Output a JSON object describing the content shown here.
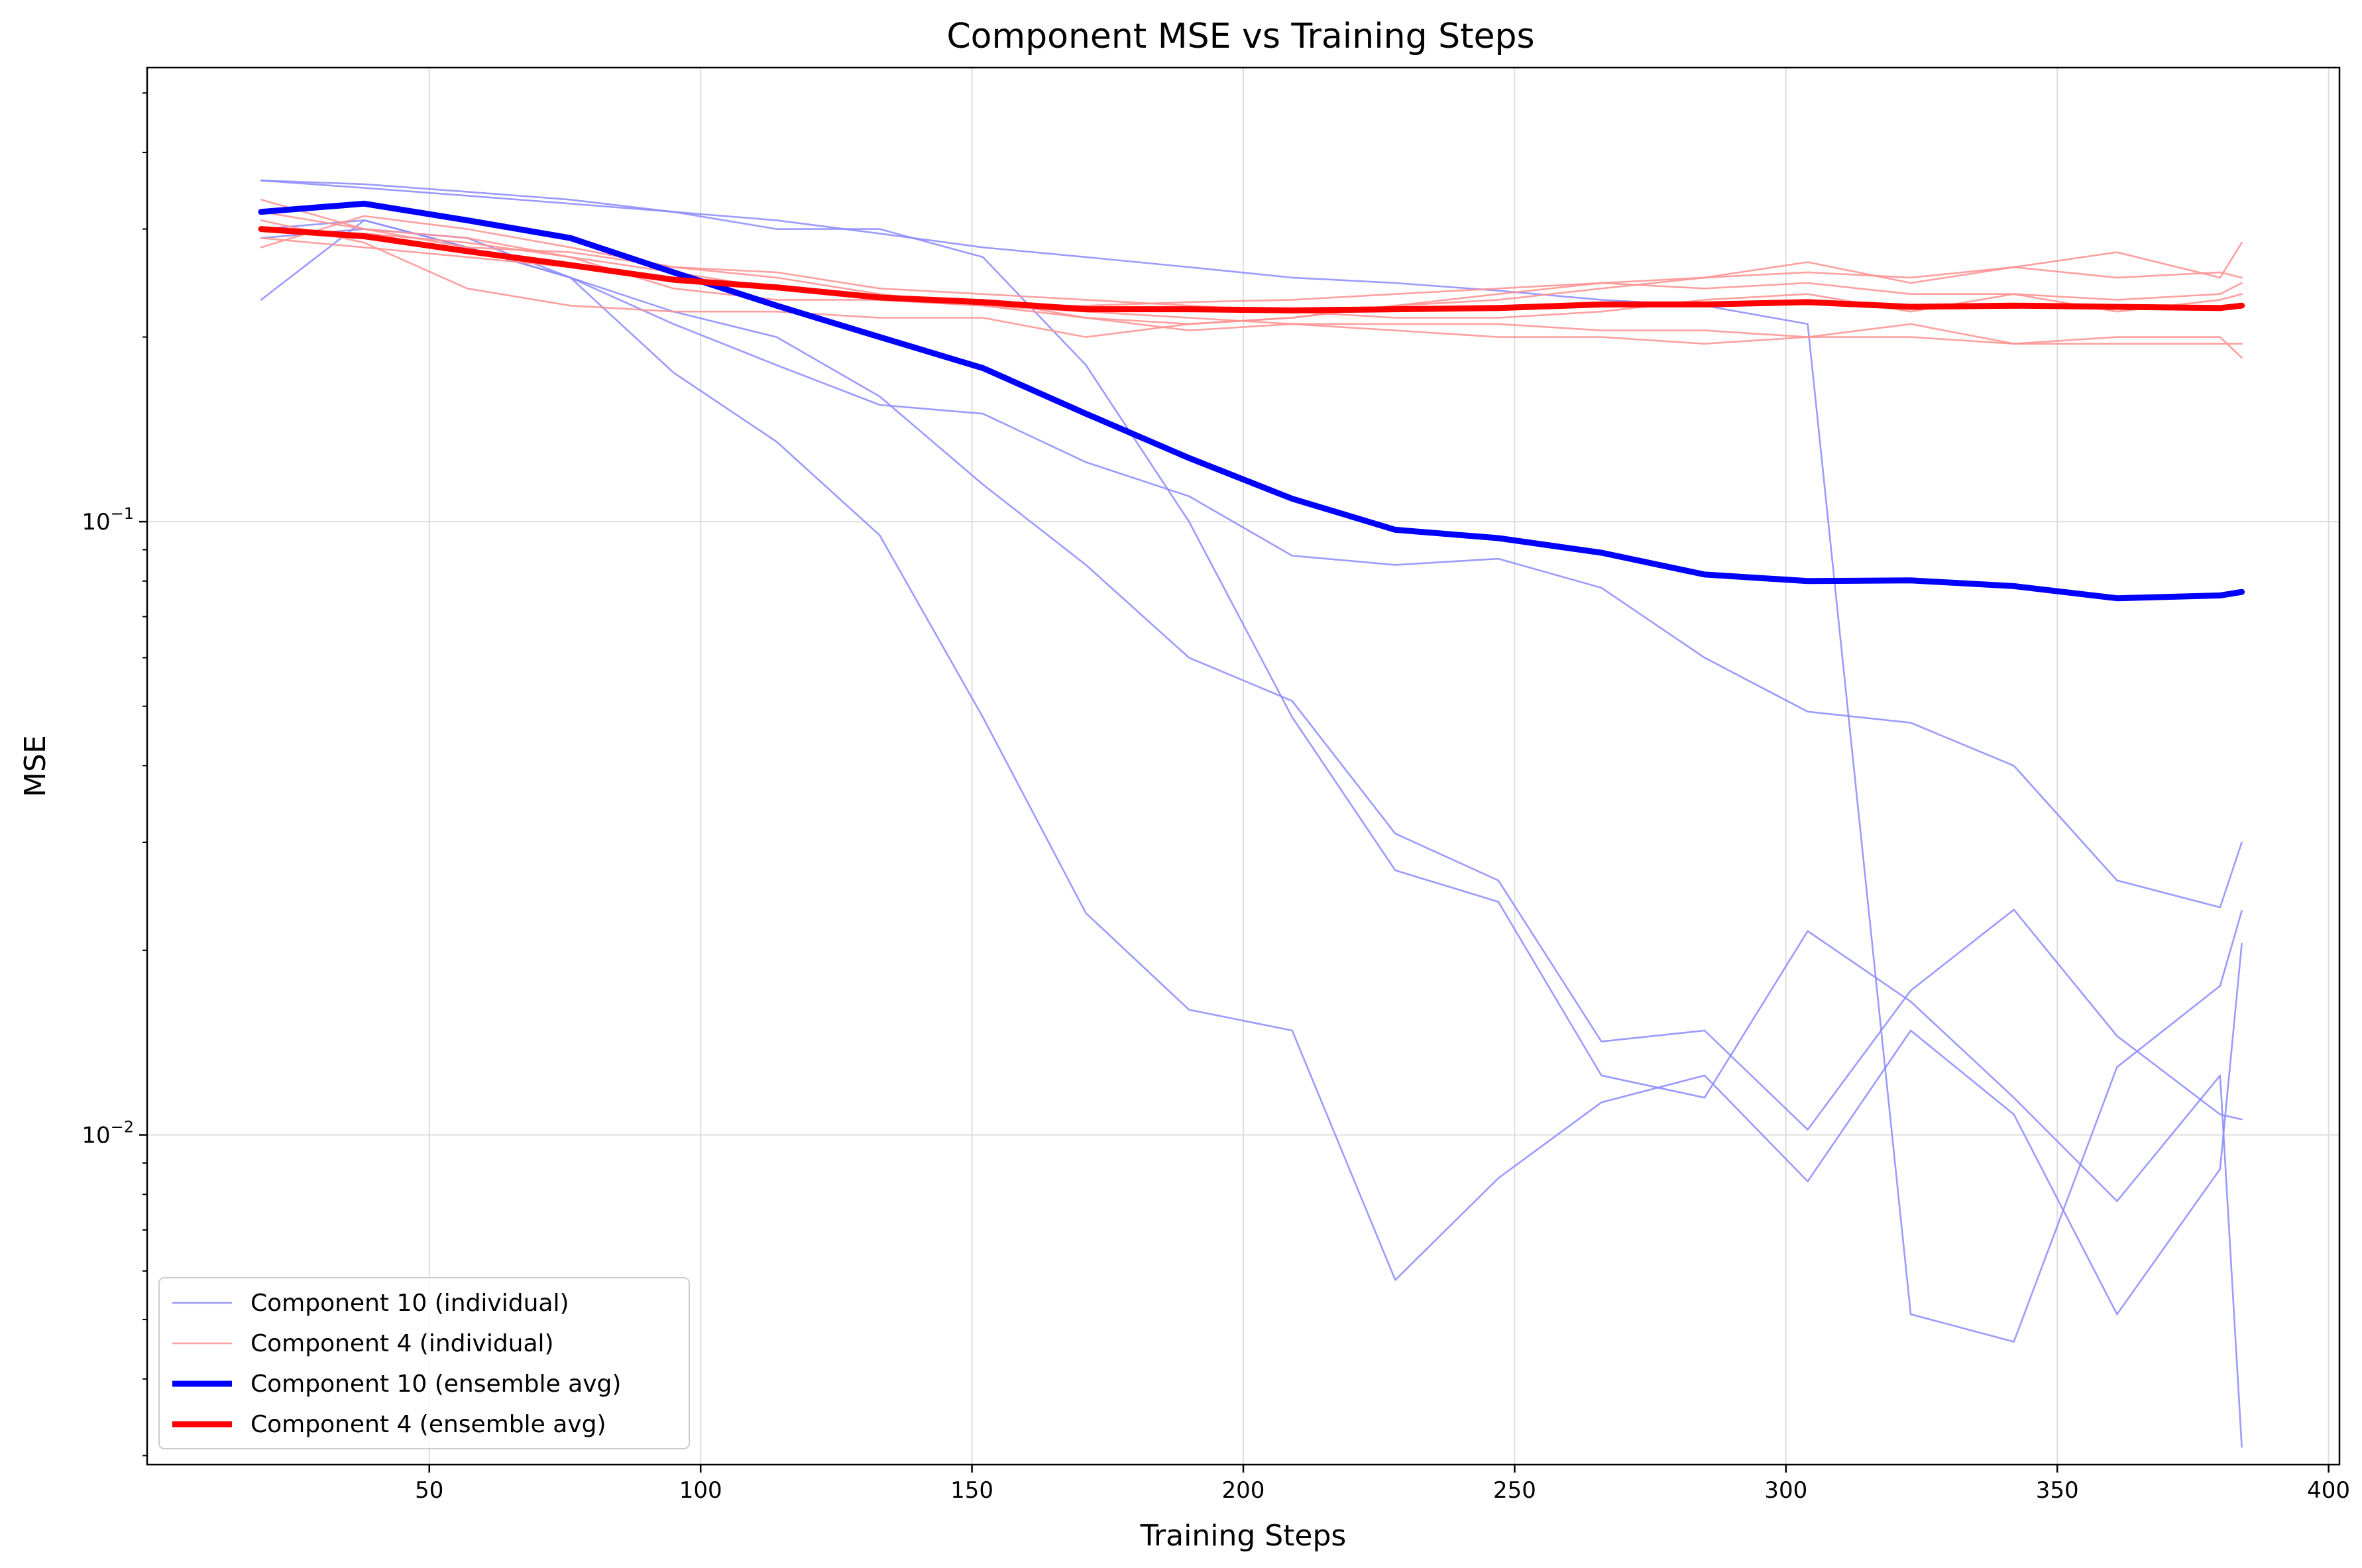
{
  "chart_data": {
    "type": "line",
    "title": "Component MSE vs Training Steps",
    "xlabel": "Training Steps",
    "ylabel": "MSE",
    "xlim": [
      -2,
      402
    ],
    "ylim": [
      0.0029,
      0.55
    ],
    "yscale": "log",
    "grid": true,
    "legend_position": "lower-left",
    "x_ticks": [
      50,
      100,
      150,
      200,
      250,
      300,
      350,
      400
    ],
    "x_tick_labels": [
      "50",
      "100",
      "150",
      "200",
      "250",
      "300",
      "350",
      "400"
    ],
    "y_major_ticks": [
      0.1,
      0.01
    ],
    "y_tick_mantissa": "10",
    "y_tick_exponents": [
      "−1",
      "−2"
    ],
    "y_minor_ticks": [
      0.003,
      0.004,
      0.005,
      0.006,
      0.007,
      0.008,
      0.009,
      0.02,
      0.03,
      0.04,
      0.05,
      0.06,
      0.07,
      0.08,
      0.09,
      0.2,
      0.3,
      0.4,
      0.5
    ],
    "colors": {
      "comp10_individual": "#8a8aff",
      "comp4_individual": "#ff8f8f",
      "comp10_avg": "#0000ff",
      "comp4_avg": "#ff0000",
      "grid": "#dddddd"
    },
    "legend": [
      {
        "label": "Component 10 (individual)",
        "style": "comp10_individual"
      },
      {
        "label": "Component 4 (individual)",
        "style": "comp4_individual"
      },
      {
        "label": "Component 10 (ensemble avg)",
        "style": "comp10_avg"
      },
      {
        "label": "Component 4 (ensemble avg)",
        "style": "comp4_avg"
      }
    ],
    "series": [
      {
        "group": "comp10_individual",
        "x": [
          19,
          38,
          57,
          76,
          95,
          114,
          133,
          152,
          171,
          190,
          209,
          228,
          247,
          266,
          285,
          304,
          323,
          342,
          361,
          380,
          384
        ],
        "values": [
          0.36,
          0.35,
          0.34,
          0.33,
          0.32,
          0.3,
          0.3,
          0.27,
          0.18,
          0.1,
          0.048,
          0.027,
          0.024,
          0.0125,
          0.0115,
          0.0215,
          0.0165,
          0.0115,
          0.0078,
          0.0125,
          0.0031
        ]
      },
      {
        "group": "comp10_individual",
        "x": [
          19,
          38,
          57,
          76,
          95,
          114,
          133,
          152,
          171,
          190,
          209,
          228,
          247,
          266,
          285,
          304,
          323,
          342,
          361,
          380,
          384
        ],
        "values": [
          0.23,
          0.31,
          0.28,
          0.25,
          0.21,
          0.18,
          0.155,
          0.15,
          0.125,
          0.11,
          0.088,
          0.085,
          0.087,
          0.078,
          0.06,
          0.049,
          0.047,
          0.04,
          0.026,
          0.0235,
          0.03
        ]
      },
      {
        "group": "comp10_individual",
        "x": [
          19,
          38,
          57,
          76,
          95,
          114,
          133,
          152,
          171,
          190,
          209,
          228,
          247,
          266,
          285,
          304,
          323,
          342,
          361,
          380,
          384
        ],
        "values": [
          0.3,
          0.31,
          0.28,
          0.25,
          0.22,
          0.2,
          0.16,
          0.115,
          0.085,
          0.06,
          0.051,
          0.031,
          0.026,
          0.0142,
          0.0148,
          0.0102,
          0.0172,
          0.0233,
          0.0145,
          0.0108,
          0.0106
        ]
      },
      {
        "group": "comp10_individual",
        "x": [
          19,
          38,
          57,
          76,
          95,
          114,
          133,
          152,
          171,
          190,
          209,
          228,
          247,
          266,
          285,
          304,
          323,
          342,
          361,
          380,
          384
        ],
        "values": [
          0.29,
          0.3,
          0.29,
          0.25,
          0.175,
          0.135,
          0.095,
          0.048,
          0.023,
          0.016,
          0.0148,
          0.0058,
          0.0085,
          0.0113,
          0.0125,
          0.0084,
          0.0148,
          0.0108,
          0.0051,
          0.0088,
          0.0205
        ]
      },
      {
        "group": "comp10_individual",
        "x": [
          19,
          38,
          57,
          76,
          95,
          114,
          133,
          152,
          171,
          190,
          209,
          228,
          247,
          266,
          285,
          304,
          323,
          342,
          361,
          380,
          384
        ],
        "values": [
          0.36,
          0.355,
          0.345,
          0.335,
          0.32,
          0.31,
          0.295,
          0.28,
          0.27,
          0.26,
          0.25,
          0.245,
          0.238,
          0.23,
          0.225,
          0.21,
          0.0051,
          0.0046,
          0.0129,
          0.0175,
          0.0232
        ]
      },
      {
        "group": "comp4_individual",
        "x": [
          19,
          38,
          57,
          76,
          95,
          114,
          133,
          152,
          171,
          190,
          209,
          228,
          247,
          266,
          285,
          304,
          323,
          342,
          361,
          380,
          384
        ],
        "values": [
          0.335,
          0.3,
          0.28,
          0.275,
          0.26,
          0.255,
          0.24,
          0.235,
          0.23,
          0.225,
          0.22,
          0.215,
          0.215,
          0.22,
          0.23,
          0.235,
          0.22,
          0.235,
          0.22,
          0.23,
          0.235
        ]
      },
      {
        "group": "comp4_individual",
        "x": [
          19,
          38,
          57,
          76,
          95,
          114,
          133,
          152,
          171,
          190,
          209,
          228,
          247,
          266,
          285,
          304,
          323,
          342,
          361,
          380,
          384
        ],
        "values": [
          0.31,
          0.285,
          0.24,
          0.225,
          0.22,
          0.22,
          0.215,
          0.215,
          0.2,
          0.21,
          0.215,
          0.225,
          0.23,
          0.24,
          0.25,
          0.265,
          0.245,
          0.26,
          0.275,
          0.25,
          0.285
        ]
      },
      {
        "group": "comp4_individual",
        "x": [
          19,
          38,
          57,
          76,
          95,
          114,
          133,
          152,
          171,
          190,
          209,
          228,
          247,
          266,
          285,
          304,
          323,
          342,
          361,
          380,
          384
        ],
        "values": [
          0.28,
          0.315,
          0.3,
          0.28,
          0.26,
          0.25,
          0.235,
          0.225,
          0.22,
          0.215,
          0.21,
          0.205,
          0.2,
          0.2,
          0.195,
          0.2,
          0.21,
          0.195,
          0.2,
          0.2,
          0.185
        ]
      },
      {
        "group": "comp4_individual",
        "x": [
          19,
          38,
          57,
          76,
          95,
          114,
          133,
          152,
          171,
          190,
          209,
          228,
          247,
          266,
          285,
          304,
          323,
          342,
          361,
          380,
          384
        ],
        "values": [
          0.3,
          0.295,
          0.285,
          0.27,
          0.255,
          0.24,
          0.23,
          0.225,
          0.225,
          0.228,
          0.23,
          0.235,
          0.24,
          0.245,
          0.25,
          0.255,
          0.25,
          0.26,
          0.25,
          0.255,
          0.25
        ]
      },
      {
        "group": "comp4_individual",
        "x": [
          19,
          38,
          57,
          76,
          95,
          114,
          133,
          152,
          171,
          190,
          209,
          228,
          247,
          266,
          285,
          304,
          323,
          342,
          361,
          380,
          384
        ],
        "values": [
          0.29,
          0.28,
          0.27,
          0.26,
          0.25,
          0.24,
          0.23,
          0.225,
          0.215,
          0.205,
          0.21,
          0.21,
          0.21,
          0.205,
          0.205,
          0.2,
          0.2,
          0.195,
          0.195,
          0.195,
          0.195
        ]
      },
      {
        "group": "comp4_individual",
        "x": [
          19,
          38,
          57,
          76,
          95,
          114,
          133,
          152,
          171,
          190,
          209,
          228,
          247,
          266,
          285,
          304,
          323,
          342,
          361,
          380,
          384
        ],
        "values": [
          0.32,
          0.3,
          0.29,
          0.27,
          0.24,
          0.23,
          0.23,
          0.23,
          0.215,
          0.21,
          0.215,
          0.225,
          0.235,
          0.245,
          0.24,
          0.245,
          0.235,
          0.235,
          0.23,
          0.235,
          0.245
        ]
      },
      {
        "group": "comp10_avg",
        "name": "Component 10 (ensemble avg)",
        "x": [
          19,
          38,
          57,
          76,
          95,
          114,
          133,
          152,
          171,
          190,
          209,
          228,
          247,
          266,
          285,
          304,
          323,
          342,
          361,
          380,
          384
        ],
        "values": [
          0.32,
          0.33,
          0.31,
          0.29,
          0.255,
          0.225,
          0.2,
          0.178,
          0.15,
          0.127,
          0.109,
          0.097,
          0.094,
          0.089,
          0.082,
          0.08,
          0.0802,
          0.0785,
          0.075,
          0.0758,
          0.0768
        ]
      },
      {
        "group": "comp4_avg",
        "name": "Component 4 (ensemble avg)",
        "x": [
          19,
          38,
          57,
          76,
          95,
          114,
          133,
          152,
          171,
          190,
          209,
          228,
          247,
          266,
          285,
          304,
          323,
          342,
          361,
          380,
          384
        ],
        "values": [
          0.3,
          0.292,
          0.276,
          0.262,
          0.248,
          0.241,
          0.232,
          0.228,
          0.222,
          0.222,
          0.221,
          0.222,
          0.223,
          0.226,
          0.226,
          0.228,
          0.224,
          0.225,
          0.224,
          0.223,
          0.225
        ]
      }
    ]
  }
}
